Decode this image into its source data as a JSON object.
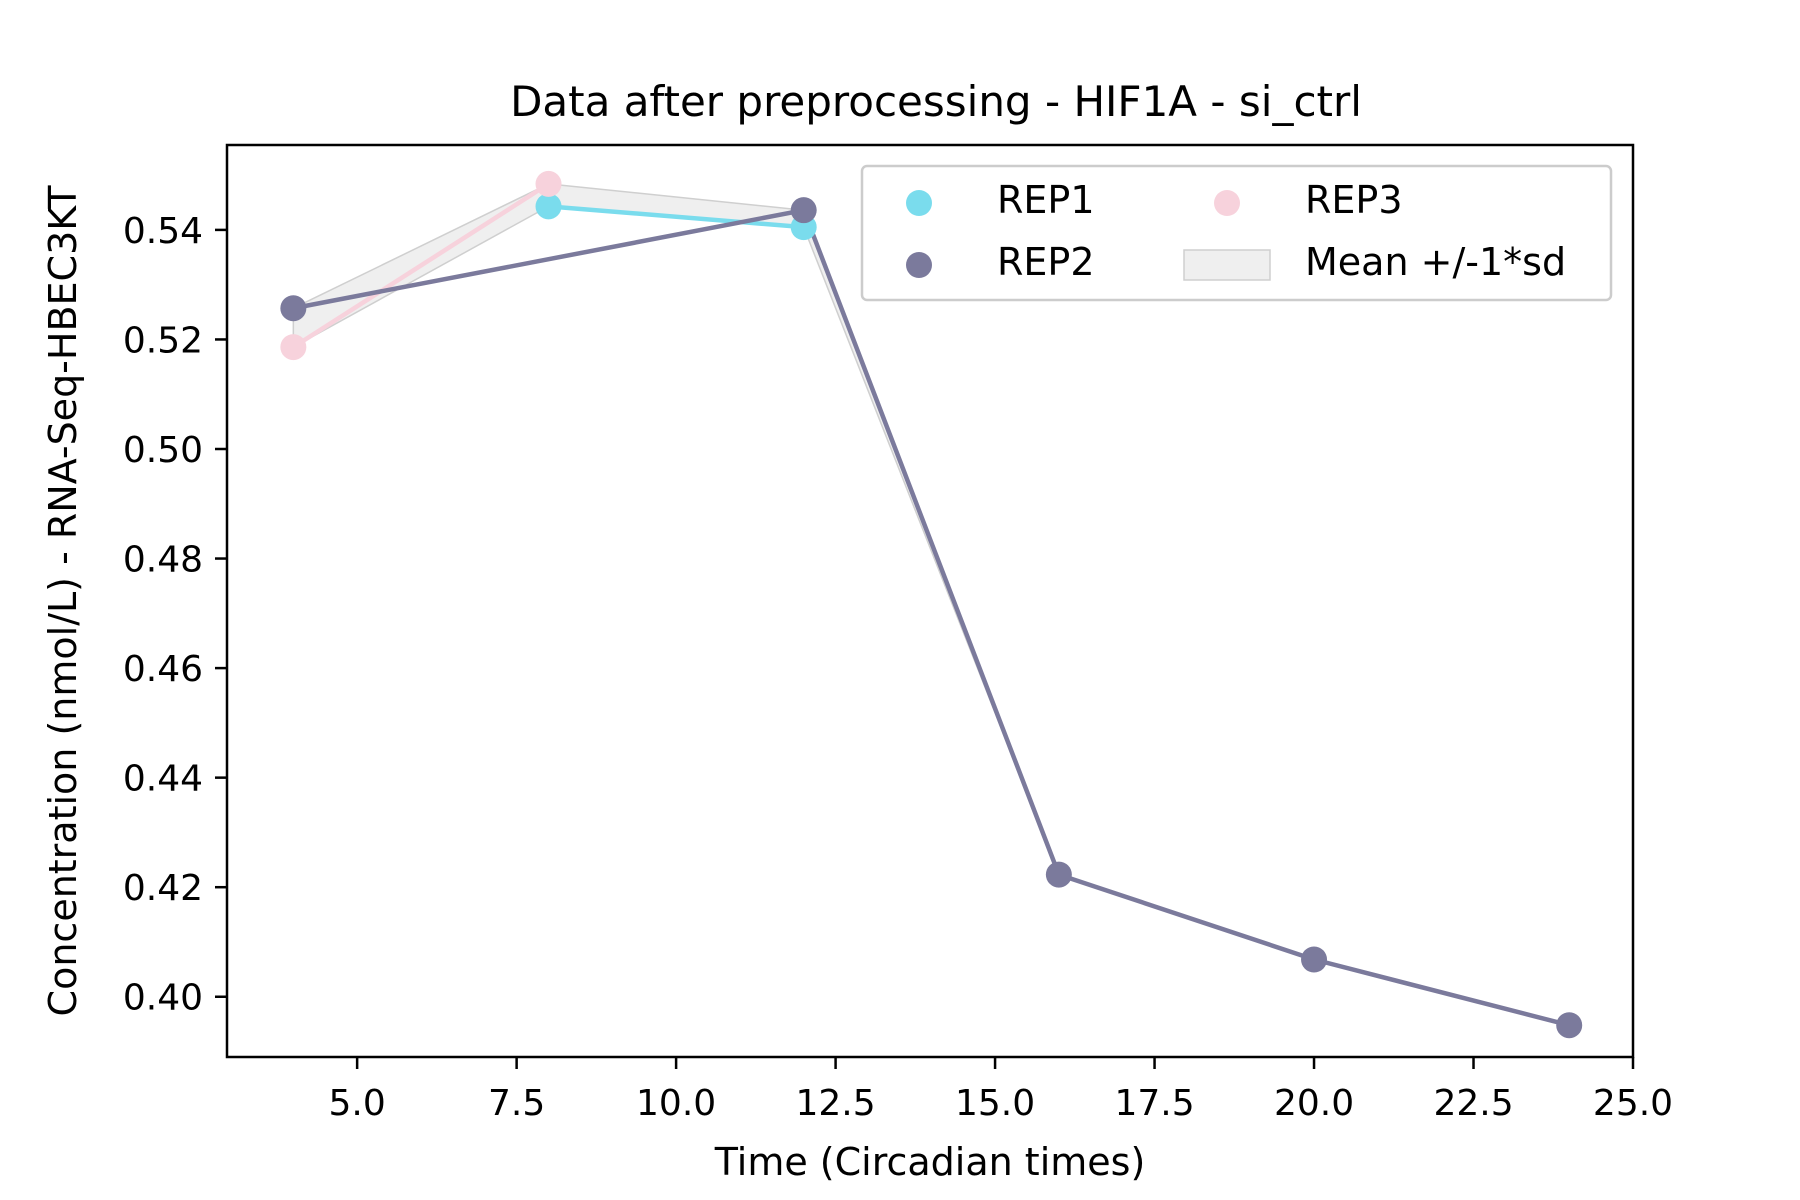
{
  "chart_data": {
    "type": "line",
    "title": "Data after preprocessing - HIF1A - si_ctrl",
    "xlabel": "Time (Circadian times)",
    "ylabel": "Concentration (nmol/L) - RNA-Seq-HBEC3KT",
    "xlim": [
      2.96,
      25.0
    ],
    "ylim": [
      0.389,
      0.5555
    ],
    "xticks": [
      5.0,
      7.5,
      10.0,
      12.5,
      15.0,
      17.5,
      20.0,
      22.5,
      25.0
    ],
    "xtick_labels": [
      "5.0",
      "7.5",
      "10.0",
      "12.5",
      "15.0",
      "17.5",
      "20.0",
      "22.5",
      "25.0"
    ],
    "yticks": [
      0.4,
      0.42,
      0.44,
      0.46,
      0.48,
      0.5,
      0.52,
      0.54
    ],
    "ytick_labels": [
      "0.40",
      "0.42",
      "0.44",
      "0.46",
      "0.48",
      "0.50",
      "0.52",
      "0.54"
    ],
    "grid": false,
    "legend_position": "top-right",
    "series": [
      {
        "name": "REP1",
        "color": "#7adced",
        "x": [
          8,
          12
        ],
        "y": [
          0.5443,
          0.5405
        ]
      },
      {
        "name": "REP3",
        "color": "#f7d2dc",
        "x": [
          4,
          8
        ],
        "y": [
          0.5186,
          0.5484
        ]
      },
      {
        "name": "REP2",
        "color": "#7b7a9c",
        "x": [
          4,
          12,
          16,
          20,
          24
        ],
        "y": [
          0.5257,
          0.5436,
          0.4223,
          0.4068,
          0.3948
        ]
      }
    ],
    "band": {
      "name": "Mean +/-1*sd",
      "color": "#e8e8e8",
      "x": [
        4,
        8,
        12,
        16,
        20,
        24
      ],
      "lower": [
        0.5186,
        0.5443,
        0.5405,
        0.4223,
        0.4068,
        0.3948
      ],
      "upper": [
        0.5257,
        0.5484,
        0.5436,
        0.4223,
        0.4068,
        0.3948
      ]
    }
  }
}
